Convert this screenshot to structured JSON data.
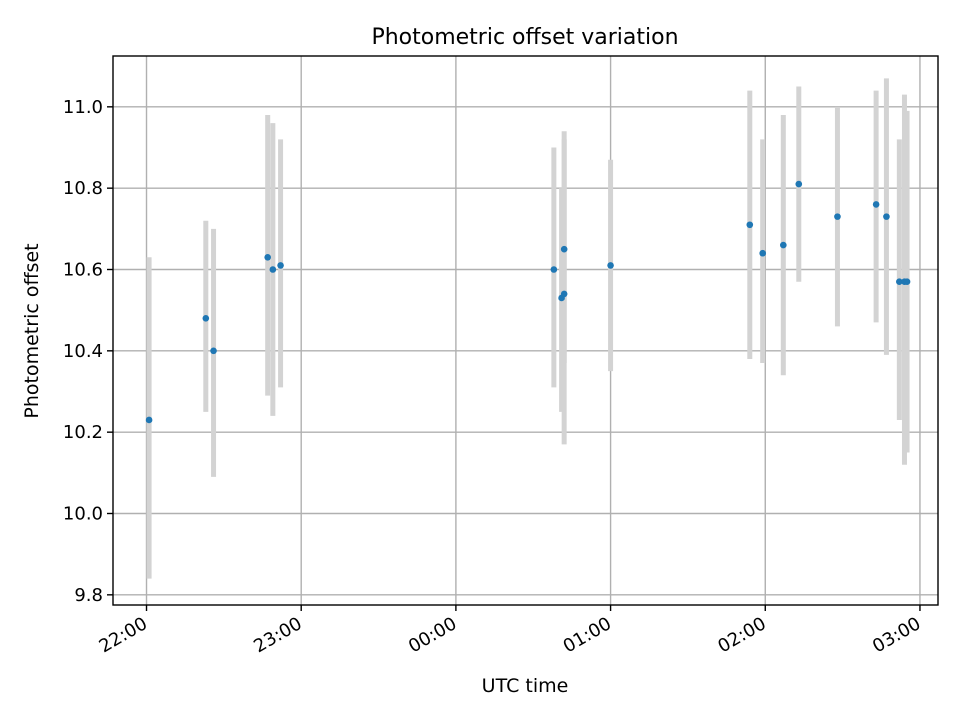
{
  "chart_data": {
    "type": "scatter",
    "title": "Photometric offset variation",
    "xlabel": "UTC time",
    "ylabel": "Photometric offset",
    "xlim": [
      "21:47",
      "03:07"
    ],
    "ylim": [
      9.775,
      11.125
    ],
    "grid": true,
    "legend": "none",
    "x_ticks": [
      "22:00",
      "23:00",
      "00:00",
      "01:00",
      "02:00",
      "03:00"
    ],
    "y_ticks": [
      "9.8",
      "10.0",
      "10.2",
      "10.4",
      "10.6",
      "10.8",
      "11.0"
    ],
    "colors": {
      "points": "#1f77b4",
      "error_bars": "#d3d3d3",
      "grid": "#b0b0b0"
    },
    "series": [
      {
        "points": [
          {
            "x": "22:01",
            "y": 10.23,
            "ylow": 9.84,
            "yhigh": 10.63
          },
          {
            "x": "22:23",
            "y": 10.48,
            "ylow": 10.25,
            "yhigh": 10.72
          },
          {
            "x": "22:26",
            "y": 10.4,
            "ylow": 10.09,
            "yhigh": 10.7
          },
          {
            "x": "22:47",
            "y": 10.63,
            "ylow": 10.29,
            "yhigh": 10.98
          },
          {
            "x": "22:49",
            "y": 10.6,
            "ylow": 10.24,
            "yhigh": 10.96
          },
          {
            "x": "22:52",
            "y": 10.61,
            "ylow": 10.31,
            "yhigh": 10.92
          },
          {
            "x": "00:38",
            "y": 10.6,
            "ylow": 10.31,
            "yhigh": 10.9
          },
          {
            "x": "00:41",
            "y": 10.53,
            "ylow": 10.25,
            "yhigh": 10.8
          },
          {
            "x": "00:42",
            "y": 10.65,
            "ylow": 10.37,
            "yhigh": 10.94
          },
          {
            "x": "00:42",
            "y": 10.54,
            "ylow": 10.17,
            "yhigh": 10.92
          },
          {
            "x": "01:00",
            "y": 10.61,
            "ylow": 10.35,
            "yhigh": 10.87
          },
          {
            "x": "01:54",
            "y": 10.71,
            "ylow": 10.38,
            "yhigh": 11.04
          },
          {
            "x": "01:59",
            "y": 10.64,
            "ylow": 10.37,
            "yhigh": 10.92
          },
          {
            "x": "02:07",
            "y": 10.66,
            "ylow": 10.34,
            "yhigh": 10.98
          },
          {
            "x": "02:13",
            "y": 10.81,
            "ylow": 10.57,
            "yhigh": 11.05
          },
          {
            "x": "02:28",
            "y": 10.73,
            "ylow": 10.46,
            "yhigh": 11.0
          },
          {
            "x": "02:43",
            "y": 10.76,
            "ylow": 10.47,
            "yhigh": 11.04
          },
          {
            "x": "02:47",
            "y": 10.73,
            "ylow": 10.39,
            "yhigh": 11.07
          },
          {
            "x": "02:52",
            "y": 10.57,
            "ylow": 10.23,
            "yhigh": 10.92
          },
          {
            "x": "02:54",
            "y": 10.57,
            "ylow": 10.12,
            "yhigh": 11.03
          },
          {
            "x": "02:55",
            "y": 10.57,
            "ylow": 10.15,
            "yhigh": 10.99
          }
        ]
      }
    ]
  }
}
